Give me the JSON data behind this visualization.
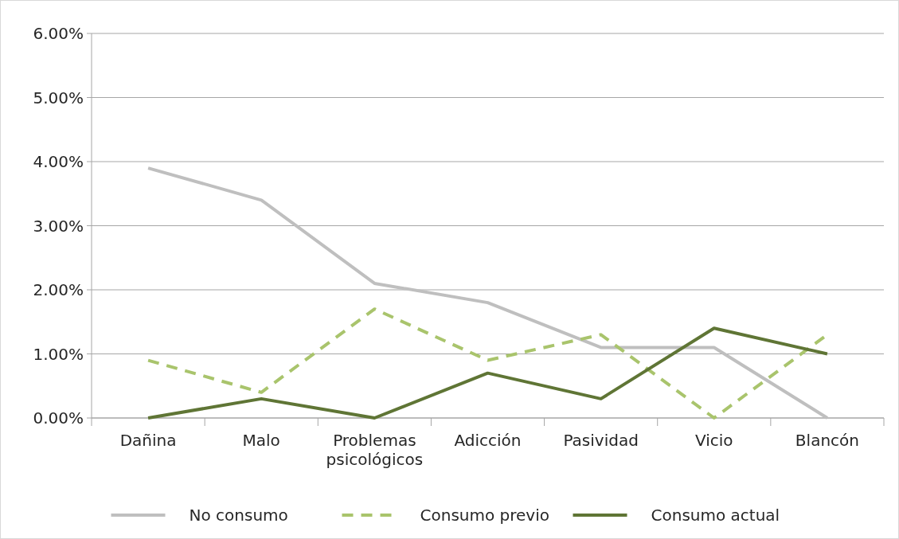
{
  "chart_data": {
    "type": "line",
    "categories": [
      "Dañina",
      "Malo",
      "Problemas psicológicos",
      "Adicción",
      "Pasividad",
      "Vicio",
      "Blancón"
    ],
    "series": [
      {
        "name": "No consumo",
        "color": "#bfbfbf",
        "line_style": "solid",
        "values": [
          3.9,
          3.4,
          2.1,
          1.8,
          1.1,
          1.1,
          0.0
        ]
      },
      {
        "name": "Consumo previo",
        "color": "#a9c46c",
        "line_style": "dashed",
        "values": [
          0.9,
          0.4,
          1.7,
          0.9,
          1.3,
          0.0,
          1.3
        ]
      },
      {
        "name": "Consumo actual",
        "color": "#5f7535",
        "line_style": "solid",
        "values": [
          0.0,
          0.3,
          0.0,
          0.7,
          0.3,
          1.4,
          1.0
        ]
      }
    ],
    "ylim": [
      0,
      6
    ],
    "yticks": [
      {
        "value": 0,
        "label": "0.00%"
      },
      {
        "value": 1,
        "label": "1.00%"
      },
      {
        "value": 2,
        "label": "2.00%"
      },
      {
        "value": 3,
        "label": "3.00%"
      },
      {
        "value": 4,
        "label": "4.00%"
      },
      {
        "value": 5,
        "label": "5.00%"
      },
      {
        "value": 6,
        "label": "6.00%"
      }
    ],
    "grid": "y",
    "legend": "bottom",
    "marker": "none"
  }
}
